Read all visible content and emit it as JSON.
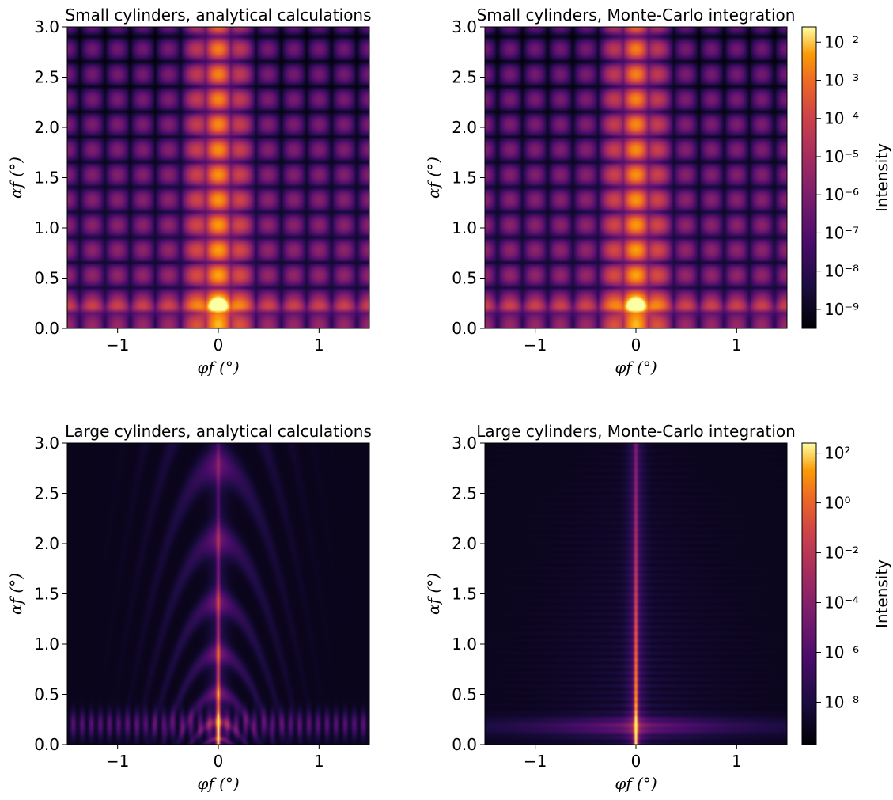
{
  "colors": {
    "map_low": "#000004",
    "map_mid": "#bc3754",
    "map_high": "#fcffa4"
  },
  "chart_data": [
    {
      "type": "heatmap",
      "title": "Small cylinders, analytical calculations",
      "xlabel": "φf (°)",
      "ylabel": "αf (°)",
      "xlim": [
        -1.5,
        1.5
      ],
      "ylim": [
        0,
        3
      ],
      "xticks": [
        "−1",
        "0",
        "1"
      ],
      "yticks": [
        "0.0",
        "0.5",
        "1.0",
        "1.5",
        "2.0",
        "2.5",
        "3.0"
      ],
      "pattern": "small-grid",
      "colormap": "inferno",
      "scale": "log"
    },
    {
      "type": "heatmap",
      "title": "Small cylinders, Monte-Carlo integration",
      "xlabel": "φf (°)",
      "ylabel": "αf (°)",
      "xlim": [
        -1.5,
        1.5
      ],
      "ylim": [
        0,
        3
      ],
      "xticks": [
        "−1",
        "0",
        "1"
      ],
      "yticks": [
        "0.0",
        "0.5",
        "1.0",
        "1.5",
        "2.0",
        "2.5",
        "3.0"
      ],
      "pattern": "small-grid",
      "colormap": "inferno",
      "scale": "log",
      "colorbar": {
        "label": "Intensity",
        "ticks": [
          "10⁻²",
          "10⁻³",
          "10⁻⁴",
          "10⁻⁵",
          "10⁻⁶",
          "10⁻⁷",
          "10⁻⁸",
          "10⁻⁹"
        ],
        "exponents": [
          -2,
          -3,
          -4,
          -5,
          -6,
          -7,
          -8,
          -9
        ],
        "range_exp": [
          -9.5,
          -1.6
        ]
      }
    },
    {
      "type": "heatmap",
      "title": "Large cylinders, analytical calculations",
      "xlabel": "φf (°)",
      "ylabel": "αf (°)",
      "xlim": [
        -1.5,
        1.5
      ],
      "ylim": [
        0,
        3
      ],
      "xticks": [
        "−1",
        "0",
        "1"
      ],
      "yticks": [
        "0.0",
        "0.5",
        "1.0",
        "1.5",
        "2.0",
        "2.5",
        "3.0"
      ],
      "pattern": "large-analytical",
      "colormap": "inferno",
      "scale": "log"
    },
    {
      "type": "heatmap",
      "title": "Large cylinders, Monte-Carlo integration",
      "xlabel": "φf (°)",
      "ylabel": "αf (°)",
      "xlim": [
        -1.5,
        1.5
      ],
      "ylim": [
        0,
        3
      ],
      "xticks": [
        "−1",
        "0",
        "1"
      ],
      "yticks": [
        "0.0",
        "0.5",
        "1.0",
        "1.5",
        "2.0",
        "2.5",
        "3.0"
      ],
      "pattern": "large-mc",
      "colormap": "inferno",
      "scale": "log",
      "colorbar": {
        "label": "Intensity",
        "ticks": [
          "10²",
          "10⁰",
          "10⁻²",
          "10⁻⁴",
          "10⁻⁶",
          "10⁻⁸"
        ],
        "exponents": [
          2,
          0,
          -2,
          -4,
          -6,
          -8
        ],
        "range_exp": [
          -9.7,
          2.4
        ]
      }
    }
  ]
}
